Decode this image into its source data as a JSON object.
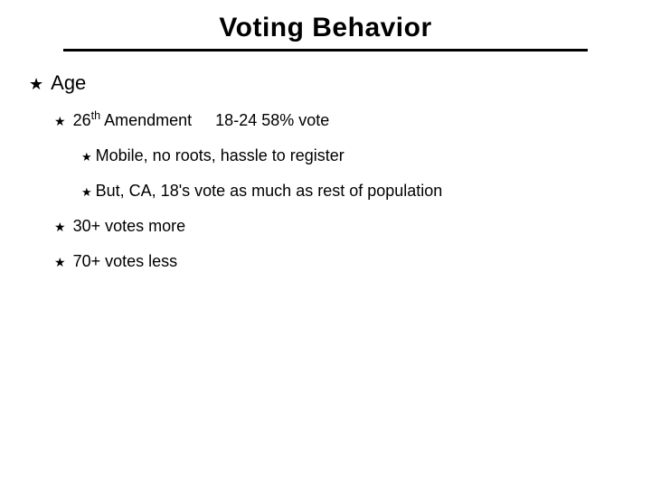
{
  "title": "Voting Behavior",
  "bullets": {
    "age": "Age",
    "amend_pre": "26",
    "amend_ord": "th",
    "amend_post": " Amendment",
    "amend_tail": "18-24 58% vote",
    "mobile": "Mobile, no roots, hassle to register",
    "butca": "But, CA, 18's vote as much as rest of population",
    "thirty": "30+ votes more",
    "seventy": "70+ votes less"
  },
  "glyphs": {
    "star_filled": "★",
    "star_outline": "★"
  },
  "style": {
    "title_fontsize": 30,
    "lvl1_fontsize": 22,
    "lvl2_fontsize": 18,
    "lvl3_fontsize": 18,
    "rule_color": "#000000",
    "bg_color": "#ffffff",
    "text_color": "#000000"
  }
}
